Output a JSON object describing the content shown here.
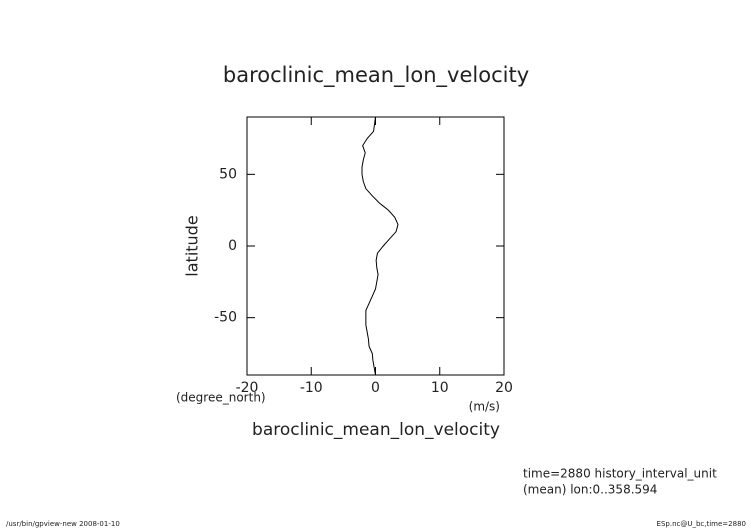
{
  "chart_data": {
    "type": "line",
    "title": "baroclinic_mean_lon_velocity",
    "x_label": "baroclinic_mean_lon_velocity",
    "x_unit": "(m/s)",
    "y_label": "latitude",
    "y_unit": "(degree_north)",
    "annotations": [
      "time=2880 history_interval_unit",
      "(mean) lon:0..358.594"
    ],
    "footer_left": "/usr/bin/gpview-new  2008-01-10",
    "footer_right": "ESp.nc@U_bc,time=2880",
    "y": [
      90,
      80,
      75,
      70,
      65,
      60,
      55,
      50,
      45,
      40,
      35,
      30,
      25,
      20,
      15,
      10,
      5,
      0,
      -5,
      -10,
      -15,
      -20,
      -25,
      -30,
      -35,
      -40,
      -45,
      -50,
      -55,
      -60,
      -65,
      -70,
      -75,
      -80,
      -85,
      -90
    ],
    "values": [
      0,
      -0.3,
      -1.3,
      -2,
      -1.6,
      -1.9,
      -2.1,
      -2.1,
      -1.9,
      -1.5,
      -0.5,
      0.6,
      2,
      3,
      3.5,
      3.2,
      2.2,
      1.2,
      0.3,
      0.1,
      0.2,
      0.4,
      0.2,
      0,
      -0.5,
      -1,
      -1.5,
      -1.5,
      -1.5,
      -1.3,
      -1.1,
      -1,
      -0.5,
      -0.4,
      -0.2,
      0
    ],
    "color": "#000000",
    "xlim": [
      -20,
      20
    ],
    "xticks": [
      -20,
      -10,
      0,
      10,
      20
    ],
    "ylim": [
      -90,
      90
    ],
    "yticks": [
      -50,
      0,
      50
    ]
  }
}
